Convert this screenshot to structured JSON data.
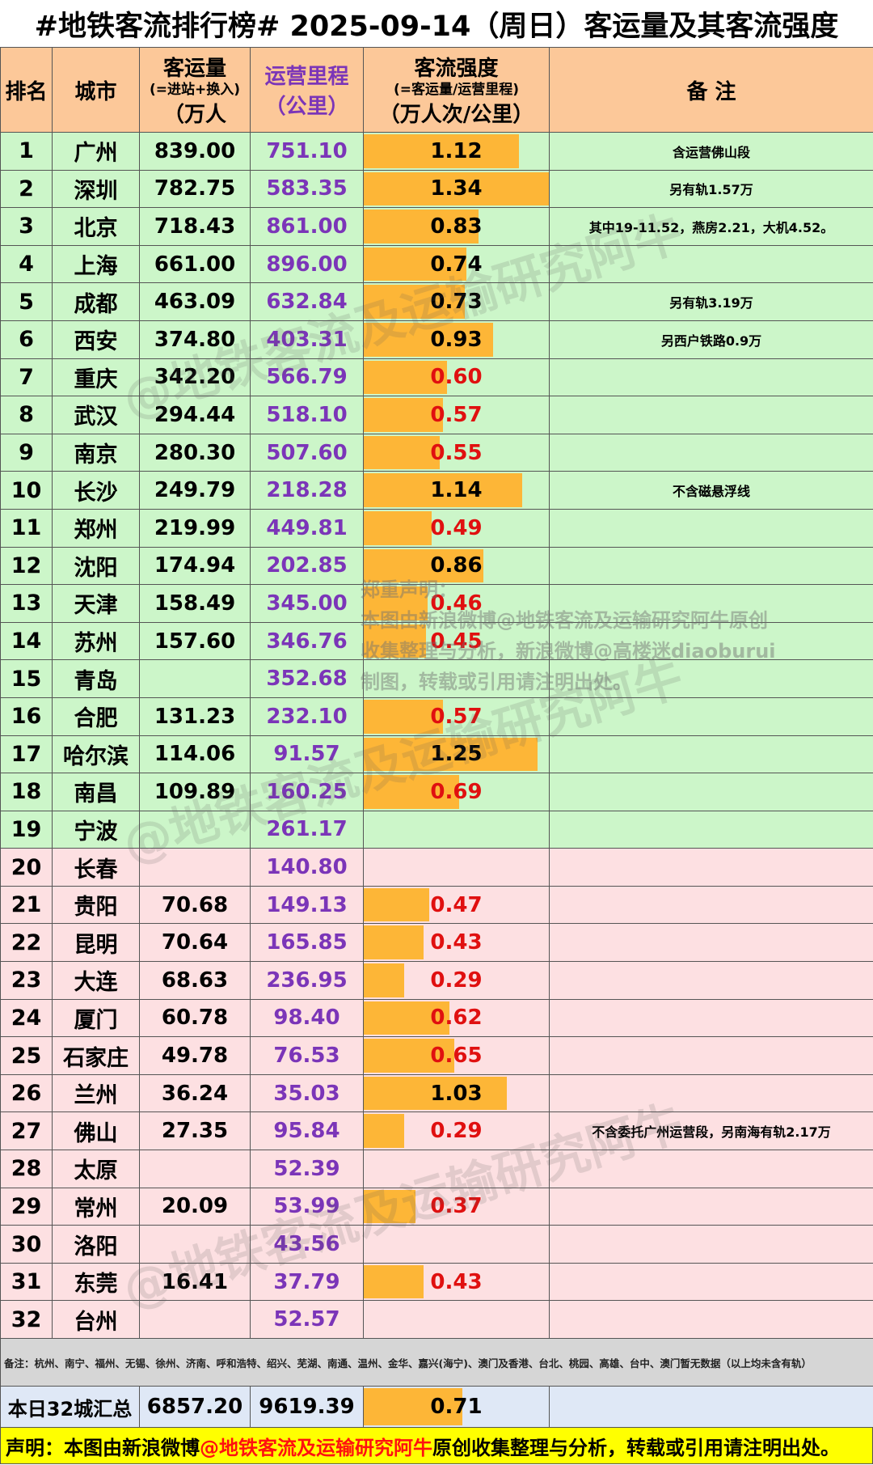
{
  "title": "#地铁客流排行榜# 2025-09-14（周日）客运量及其客流强度",
  "headers": {
    "rank": "排名",
    "city": "城市",
    "volume_main": "客运量",
    "volume_sub": "(=进站+换入)",
    "volume_unit": "（万人",
    "mileage_main": "运营里程",
    "mileage_unit": "（公里）",
    "intensity_main": "客流强度",
    "intensity_sub": "(=客运量/运营里程)",
    "intensity_unit": "（万人次/公里）",
    "note": "备 注"
  },
  "rows": [
    {
      "rank": "1",
      "city": "广州",
      "volume": "839.00",
      "mileage": "751.10",
      "intensity": "1.12",
      "note": "含运营佛山段",
      "group": "green"
    },
    {
      "rank": "2",
      "city": "深圳",
      "volume": "782.75",
      "mileage": "583.35",
      "intensity": "1.34",
      "note": "另有轨1.57万",
      "group": "green"
    },
    {
      "rank": "3",
      "city": "北京",
      "volume": "718.43",
      "mileage": "861.00",
      "intensity": "0.83",
      "note": "其中19-11.52，燕房2.21，大机4.52。",
      "group": "green"
    },
    {
      "rank": "4",
      "city": "上海",
      "volume": "661.00",
      "mileage": "896.00",
      "intensity": "0.74",
      "note": "",
      "group": "green"
    },
    {
      "rank": "5",
      "city": "成都",
      "volume": "463.09",
      "mileage": "632.84",
      "intensity": "0.73",
      "note": "另有轨3.19万",
      "group": "green"
    },
    {
      "rank": "6",
      "city": "西安",
      "volume": "374.80",
      "mileage": "403.31",
      "intensity": "0.93",
      "note": "另西户铁路0.9万",
      "group": "green"
    },
    {
      "rank": "7",
      "city": "重庆",
      "volume": "342.20",
      "mileage": "566.79",
      "intensity": "0.60",
      "note": "",
      "group": "green"
    },
    {
      "rank": "8",
      "city": "武汉",
      "volume": "294.44",
      "mileage": "518.10",
      "intensity": "0.57",
      "note": "",
      "group": "green"
    },
    {
      "rank": "9",
      "city": "南京",
      "volume": "280.30",
      "mileage": "507.60",
      "intensity": "0.55",
      "note": "",
      "group": "green"
    },
    {
      "rank": "10",
      "city": "长沙",
      "volume": "249.79",
      "mileage": "218.28",
      "intensity": "1.14",
      "note": "不含磁悬浮线",
      "group": "green"
    },
    {
      "rank": "11",
      "city": "郑州",
      "volume": "219.99",
      "mileage": "449.81",
      "intensity": "0.49",
      "note": "",
      "group": "green"
    },
    {
      "rank": "12",
      "city": "沈阳",
      "volume": "174.94",
      "mileage": "202.85",
      "intensity": "0.86",
      "note": "",
      "group": "green"
    },
    {
      "rank": "13",
      "city": "天津",
      "volume": "158.49",
      "mileage": "345.00",
      "intensity": "0.46",
      "note": "",
      "group": "green"
    },
    {
      "rank": "14",
      "city": "苏州",
      "volume": "157.60",
      "mileage": "346.76",
      "intensity": "0.45",
      "note": "",
      "group": "green"
    },
    {
      "rank": "15",
      "city": "青岛",
      "volume": "",
      "mileage": "352.68",
      "intensity": "",
      "note": "",
      "group": "green"
    },
    {
      "rank": "16",
      "city": "合肥",
      "volume": "131.23",
      "mileage": "232.10",
      "intensity": "0.57",
      "note": "",
      "group": "green"
    },
    {
      "rank": "17",
      "city": "哈尔滨",
      "volume": "114.06",
      "mileage": "91.57",
      "intensity": "1.25",
      "note": "",
      "group": "green"
    },
    {
      "rank": "18",
      "city": "南昌",
      "volume": "109.89",
      "mileage": "160.25",
      "intensity": "0.69",
      "note": "",
      "group": "green"
    },
    {
      "rank": "19",
      "city": "宁波",
      "volume": "",
      "mileage": "261.17",
      "intensity": "",
      "note": "",
      "group": "green"
    },
    {
      "rank": "20",
      "city": "长春",
      "volume": "",
      "mileage": "140.80",
      "intensity": "",
      "note": "",
      "group": "pink"
    },
    {
      "rank": "21",
      "city": "贵阳",
      "volume": "70.68",
      "mileage": "149.13",
      "intensity": "0.47",
      "note": "",
      "group": "pink"
    },
    {
      "rank": "22",
      "city": "昆明",
      "volume": "70.64",
      "mileage": "165.85",
      "intensity": "0.43",
      "note": "",
      "group": "pink"
    },
    {
      "rank": "23",
      "city": "大连",
      "volume": "68.63",
      "mileage": "236.95",
      "intensity": "0.29",
      "note": "",
      "group": "pink"
    },
    {
      "rank": "24",
      "city": "厦门",
      "volume": "60.78",
      "mileage": "98.40",
      "intensity": "0.62",
      "note": "",
      "group": "pink"
    },
    {
      "rank": "25",
      "city": "石家庄",
      "volume": "49.78",
      "mileage": "76.53",
      "intensity": "0.65",
      "note": "",
      "group": "pink"
    },
    {
      "rank": "26",
      "city": "兰州",
      "volume": "36.24",
      "mileage": "35.03",
      "intensity": "1.03",
      "note": "",
      "group": "pink"
    },
    {
      "rank": "27",
      "city": "佛山",
      "volume": "27.35",
      "mileage": "95.84",
      "intensity": "0.29",
      "note": "不含委托广州运营段，另南海有轨2.17万",
      "group": "pink"
    },
    {
      "rank": "28",
      "city": "太原",
      "volume": "",
      "mileage": "52.39",
      "intensity": "",
      "note": "",
      "group": "pink"
    },
    {
      "rank": "29",
      "city": "常州",
      "volume": "20.09",
      "mileage": "53.99",
      "intensity": "0.37",
      "note": "",
      "group": "pink"
    },
    {
      "rank": "30",
      "city": "洛阳",
      "volume": "",
      "mileage": "43.56",
      "intensity": "",
      "note": "",
      "group": "pink"
    },
    {
      "rank": "31",
      "city": "东莞",
      "volume": "16.41",
      "mileage": "37.79",
      "intensity": "0.43",
      "note": "",
      "group": "pink"
    },
    {
      "rank": "32",
      "city": "台州",
      "volume": "",
      "mileage": "52.57",
      "intensity": "",
      "note": "",
      "group": "pink"
    }
  ],
  "remark": "备注：杭州、南宁、福州、无锡、徐州、济南、呼和浩特、绍兴、芜湖、南通、温州、金华、嘉兴(海宁)、澳门及香港、台北、桃园、高雄、台中、澳门暂无数据（以上均未含有轨）",
  "total": {
    "label": "本日32城汇总",
    "volume": "6857.20",
    "mileage": "9619.39",
    "intensity": "0.71"
  },
  "footer": {
    "prefix": "声明：本图由新浪微博",
    "handle": "@地铁客流及运输研究阿牛",
    "suffix": " 原创收集整理与分析，转载或引用请注明出处。"
  },
  "watermark": {
    "text": "@地铁客流及运输研究阿牛",
    "decl_title": "郑重声明：",
    "decl_line1": "本图由新浪微博@地铁客流及运输研究阿牛原创",
    "decl_line2": "收集整理与分析，新浪微博@高楼迷diaoburui",
    "decl_line3": "制图，转载或引用请注明出处。"
  },
  "colors": {
    "bar": "#fdb637",
    "low_value": "#e01010",
    "mileage_text": "#7b35b8",
    "top_group_bg": "#ccf6c9",
    "bottom_group_bg": "#fde0e2",
    "header_bg": "#fcc899"
  },
  "bar_scale_max": 1.34
}
